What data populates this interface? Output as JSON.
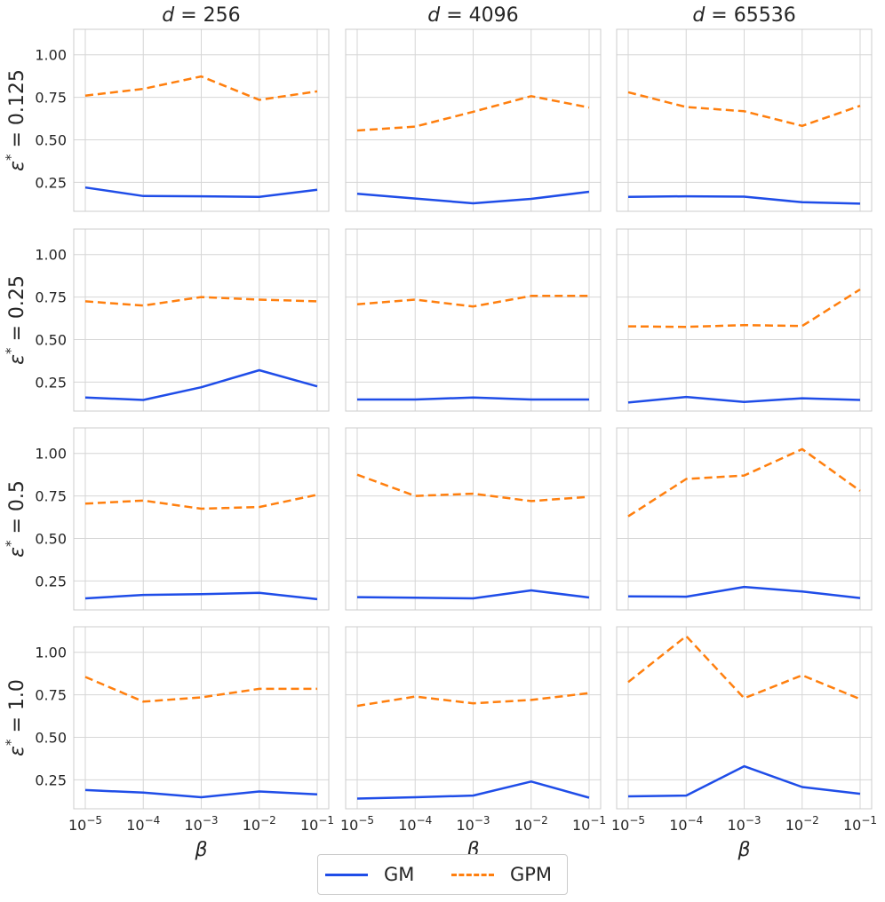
{
  "colors": {
    "gm": "#1f4de8",
    "gpm": "#ff7f0e",
    "grid": "#d6d6d6",
    "frame": "#cccccc",
    "text": "#262626"
  },
  "legend": {
    "gm_label": "GM",
    "gpm_label": "GPM"
  },
  "chart_data": {
    "type": "line",
    "x": [
      1e-05,
      0.0001,
      0.001,
      0.01,
      0.1
    ],
    "x_tick_labels": [
      {
        "base": "10",
        "exp": "−5"
      },
      {
        "base": "10",
        "exp": "−4"
      },
      {
        "base": "10",
        "exp": "−3"
      },
      {
        "base": "10",
        "exp": "−2"
      },
      {
        "base": "10",
        "exp": "−1"
      }
    ],
    "xlabel": "β",
    "xscale": "log",
    "ylim": [
      0.08,
      1.15
    ],
    "yticks": [
      0.25,
      0.5,
      0.75,
      1.0
    ],
    "ytick_labels": [
      "0.25",
      "0.50",
      "0.75",
      "1.00"
    ],
    "grid": true,
    "column_titles": [
      {
        "var": "d",
        "rest": " = 256"
      },
      {
        "var": "d",
        "rest": " = 4096"
      },
      {
        "var": "d",
        "rest": " = 65536"
      }
    ],
    "row_titles": [
      {
        "var": "ε",
        "sup": "*",
        "rest": " = 0.125"
      },
      {
        "var": "ε",
        "sup": "*",
        "rest": " = 0.25"
      },
      {
        "var": "ε",
        "sup": "*",
        "rest": " = 0.5"
      },
      {
        "var": "ε",
        "sup": "*",
        "rest": " = 1.0"
      }
    ],
    "panels": [
      [
        {
          "GM": [
            0.22,
            0.17,
            0.168,
            0.165,
            0.207
          ],
          "GPM": [
            0.76,
            0.8,
            0.873,
            0.735,
            0.785
          ]
        },
        {
          "GM": [
            0.183,
            0.155,
            0.127,
            0.153,
            0.195
          ],
          "GPM": [
            0.555,
            0.578,
            0.665,
            0.757,
            0.69
          ]
        },
        {
          "GM": [
            0.165,
            0.168,
            0.166,
            0.133,
            0.125
          ],
          "GPM": [
            0.78,
            0.693,
            0.668,
            0.582,
            0.7
          ]
        }
      ],
      [
        {
          "GM": [
            0.16,
            0.145,
            0.22,
            0.32,
            0.225
          ],
          "GPM": [
            0.725,
            0.7,
            0.75,
            0.735,
            0.725
          ]
        },
        {
          "GM": [
            0.148,
            0.148,
            0.16,
            0.148,
            0.148
          ],
          "GPM": [
            0.708,
            0.735,
            0.695,
            0.757,
            0.757
          ]
        },
        {
          "GM": [
            0.13,
            0.163,
            0.133,
            0.155,
            0.145
          ],
          "GPM": [
            0.578,
            0.575,
            0.585,
            0.58,
            0.795
          ]
        }
      ],
      [
        {
          "GM": [
            0.148,
            0.168,
            0.173,
            0.18,
            0.143
          ],
          "GPM": [
            0.705,
            0.723,
            0.675,
            0.685,
            0.757
          ]
        },
        {
          "GM": [
            0.155,
            0.152,
            0.148,
            0.195,
            0.153
          ],
          "GPM": [
            0.875,
            0.75,
            0.763,
            0.72,
            0.745
          ]
        },
        {
          "GM": [
            0.16,
            0.158,
            0.215,
            0.188,
            0.15
          ],
          "GPM": [
            0.63,
            0.85,
            0.87,
            1.025,
            0.78
          ]
        }
      ],
      [
        {
          "GM": [
            0.19,
            0.175,
            0.148,
            0.182,
            0.165
          ],
          "GPM": [
            0.855,
            0.71,
            0.735,
            0.785,
            0.785
          ]
        },
        {
          "GM": [
            0.14,
            0.148,
            0.158,
            0.24,
            0.145
          ],
          "GPM": [
            0.685,
            0.74,
            0.7,
            0.72,
            0.76
          ]
        },
        {
          "GM": [
            0.153,
            0.158,
            0.33,
            0.208,
            0.168
          ],
          "GPM": [
            0.825,
            1.095,
            0.73,
            0.865,
            0.725
          ]
        }
      ]
    ]
  }
}
